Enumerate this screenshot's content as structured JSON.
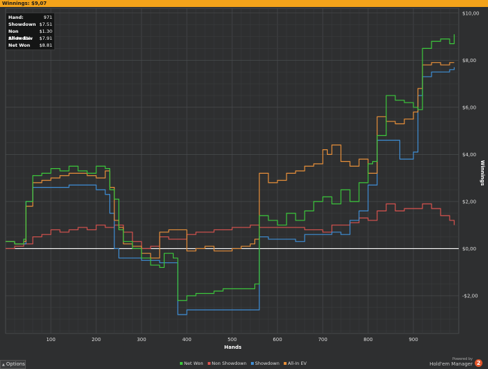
{
  "window": {
    "title": "Winnings: $9,07"
  },
  "summary": [
    {
      "label": "Hand:",
      "value": "971"
    },
    {
      "label": "Showdown",
      "value": "$7.51"
    },
    {
      "label": "Non Showdow",
      "value": "$1.30"
    },
    {
      "label": "All-In EV",
      "value": "$7.91"
    },
    {
      "label": "Net Won",
      "value": "$8.81"
    }
  ],
  "options_label": "Options",
  "powered": {
    "small": "Powered by",
    "brand": "Hold'em Manager",
    "logo": "2"
  },
  "colors": {
    "background": "#2e2f30",
    "accent": "#f4a31a",
    "net_won": "#3cc83c",
    "non_showdown": "#d9534f",
    "showdown": "#3f8fd6",
    "all_in_ev": "#e8903a",
    "zero_line": "#ffffff",
    "grid": "#45484a"
  },
  "chart_data": {
    "type": "line",
    "xlabel": "Hands",
    "ylabel": "Winnings",
    "xlim": [
      0,
      1000
    ],
    "ylim": [
      -3.6,
      10.2
    ],
    "x_ticks": [
      100,
      200,
      300,
      400,
      500,
      600,
      700,
      800,
      900
    ],
    "y_ticks": [
      -2,
      0,
      2,
      4,
      6,
      8,
      10
    ],
    "y_tick_labels": [
      "-$2,00",
      "$0,00",
      "$2,00",
      "$4,00",
      "$6,00",
      "$8,00",
      "$10,00"
    ],
    "grid": true,
    "legend_position": "bottom",
    "series": [
      {
        "name": "Net Won",
        "x": [
          0,
          10,
          20,
          40,
          45,
          60,
          80,
          100,
          120,
          140,
          160,
          180,
          200,
          220,
          230,
          240,
          250,
          260,
          280,
          300,
          320,
          340,
          350,
          370,
          380,
          400,
          420,
          440,
          460,
          480,
          500,
          520,
          540,
          550,
          560,
          580,
          600,
          620,
          640,
          660,
          680,
          700,
          720,
          740,
          760,
          780,
          800,
          810,
          820,
          840,
          860,
          880,
          900,
          910,
          920,
          940,
          960,
          980,
          990
        ],
        "y": [
          0.3,
          0.3,
          0.2,
          0.4,
          2.0,
          3.1,
          3.2,
          3.4,
          3.3,
          3.5,
          3.3,
          3.2,
          3.5,
          3.4,
          2.5,
          2.1,
          0.8,
          0.3,
          0.0,
          -0.4,
          -0.7,
          -0.8,
          -0.2,
          -0.4,
          -2.2,
          -2.0,
          -1.9,
          -1.9,
          -1.8,
          -1.7,
          -1.7,
          -1.7,
          -1.7,
          -1.5,
          1.4,
          1.2,
          1.0,
          1.5,
          1.2,
          1.6,
          2.0,
          2.2,
          1.9,
          2.5,
          2.0,
          2.8,
          3.6,
          3.7,
          4.8,
          6.5,
          6.3,
          6.2,
          6.0,
          5.9,
          8.5,
          8.8,
          8.9,
          8.7,
          9.1
        ]
      },
      {
        "name": "Non Showdown",
        "x": [
          0,
          20,
          40,
          60,
          80,
          100,
          120,
          140,
          160,
          180,
          200,
          220,
          240,
          260,
          280,
          300,
          320,
          340,
          360,
          380,
          400,
          420,
          440,
          460,
          480,
          500,
          520,
          540,
          560,
          580,
          600,
          620,
          640,
          660,
          680,
          700,
          720,
          740,
          760,
          780,
          800,
          820,
          840,
          860,
          880,
          900,
          920,
          940,
          960,
          980,
          990
        ],
        "y": [
          0.0,
          0.1,
          0.2,
          0.5,
          0.6,
          0.8,
          0.7,
          0.8,
          0.9,
          0.8,
          1.0,
          0.9,
          1.0,
          0.7,
          0.3,
          0.0,
          0.1,
          0.5,
          0.4,
          0.4,
          0.6,
          0.7,
          0.7,
          0.8,
          0.8,
          0.9,
          0.9,
          1.0,
          0.9,
          0.9,
          0.9,
          0.9,
          0.9,
          0.8,
          0.8,
          0.7,
          1.0,
          1.0,
          1.1,
          1.3,
          1.2,
          1.6,
          1.9,
          1.6,
          1.7,
          1.7,
          1.9,
          1.7,
          1.4,
          1.2,
          1.0
        ]
      },
      {
        "name": "Showdown",
        "x": [
          0,
          20,
          40,
          45,
          60,
          80,
          100,
          140,
          180,
          200,
          220,
          230,
          240,
          250,
          260,
          280,
          300,
          320,
          340,
          360,
          370,
          380,
          400,
          440,
          480,
          520,
          550,
          560,
          580,
          600,
          640,
          660,
          680,
          700,
          720,
          740,
          760,
          780,
          800,
          810,
          820,
          860,
          870,
          880,
          900,
          910,
          920,
          940,
          960,
          980,
          990
        ],
        "y": [
          0.3,
          0.2,
          0.2,
          2.0,
          2.6,
          2.6,
          2.6,
          2.7,
          2.7,
          2.5,
          2.3,
          1.5,
          0.0,
          -0.4,
          -0.4,
          -0.4,
          -0.5,
          -0.5,
          -0.6,
          -0.6,
          -0.6,
          -2.8,
          -2.6,
          -2.6,
          -2.6,
          -2.6,
          -2.6,
          0.5,
          0.4,
          0.4,
          0.3,
          0.6,
          0.6,
          0.6,
          0.7,
          0.6,
          1.2,
          1.6,
          2.7,
          2.7,
          4.6,
          4.6,
          3.8,
          3.8,
          4.1,
          6.5,
          7.3,
          7.5,
          7.5,
          7.6,
          7.7
        ]
      },
      {
        "name": "All-In EV",
        "x": [
          0,
          20,
          40,
          45,
          60,
          80,
          100,
          120,
          140,
          160,
          180,
          200,
          220,
          230,
          240,
          250,
          260,
          280,
          300,
          320,
          340,
          360,
          380,
          400,
          420,
          440,
          460,
          480,
          500,
          520,
          540,
          550,
          560,
          580,
          600,
          620,
          640,
          660,
          680,
          700,
          710,
          720,
          740,
          760,
          780,
          800,
          820,
          840,
          860,
          880,
          900,
          910,
          920,
          940,
          960,
          980,
          990
        ],
        "y": [
          0.3,
          0.2,
          0.3,
          1.8,
          2.8,
          2.9,
          3.0,
          3.1,
          3.2,
          3.2,
          3.1,
          3.0,
          3.3,
          2.6,
          1.2,
          0.9,
          0.2,
          0.1,
          -0.2,
          -0.4,
          0.7,
          0.8,
          0.8,
          -0.1,
          0.0,
          0.1,
          -0.1,
          -0.1,
          0.0,
          0.1,
          0.2,
          0.4,
          3.2,
          2.8,
          2.9,
          3.2,
          3.3,
          3.5,
          3.6,
          4.2,
          4.0,
          4.4,
          3.7,
          3.5,
          3.8,
          3.2,
          5.6,
          5.4,
          5.3,
          5.5,
          5.8,
          6.8,
          7.8,
          7.9,
          7.8,
          7.9,
          7.9
        ]
      }
    ]
  }
}
